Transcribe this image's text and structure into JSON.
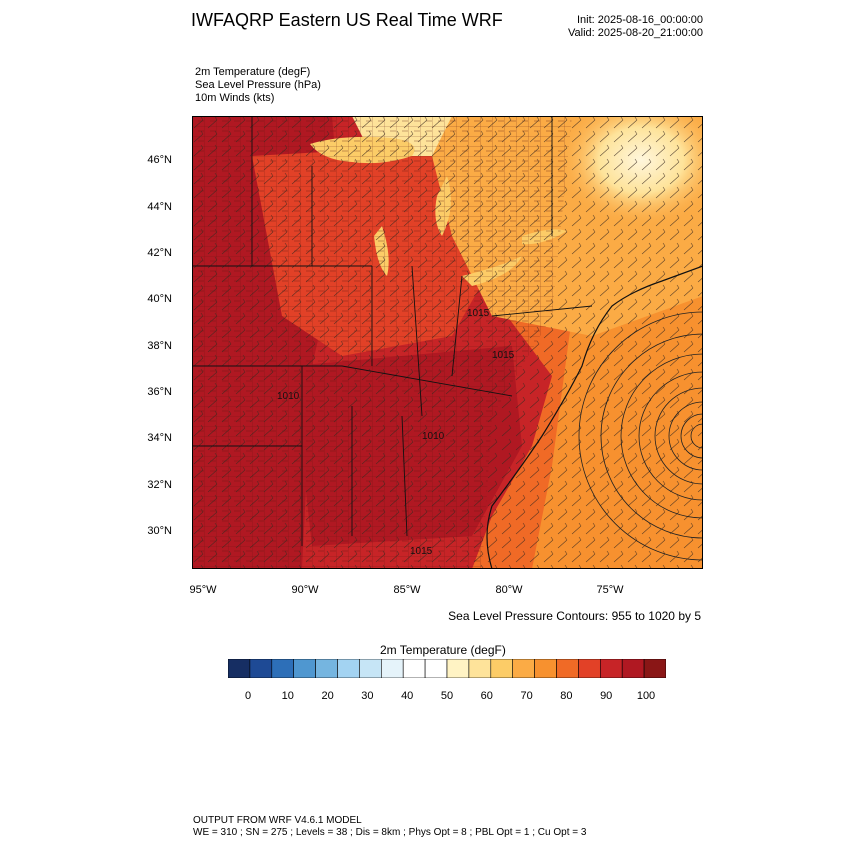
{
  "header": {
    "title": "IWFAQRP Eastern US Real Time WRF",
    "init": "Init: 2025-08-16_00:00:00",
    "valid": "Valid: 2025-08-20_21:00:00"
  },
  "fields": {
    "temp": "2m Temperature   (degF)",
    "slp": "Sea Level Pressure   (hPa)",
    "winds": "10m Winds   (kts)"
  },
  "map": {
    "lat_labels": [
      "46°N",
      "44°N",
      "42°N",
      "40°N",
      "38°N",
      "36°N",
      "34°N",
      "32°N",
      "30°N"
    ],
    "lon_labels": [
      "95°W",
      "90°W",
      "85°W",
      "80°W",
      "75°W"
    ],
    "contour_labels": [
      "1015",
      "1015",
      "1010",
      "1010",
      "1015"
    ],
    "contour_note": "Sea Level Pressure Contours: 955 to 1020 by 5"
  },
  "colorbar": {
    "title": "2m Temperature  (degF)",
    "labels": [
      "0",
      "10",
      "20",
      "30",
      "40",
      "50",
      "60",
      "70",
      "80",
      "90",
      "100"
    ],
    "colors": [
      "#162e63",
      "#1e4a95",
      "#2d6fb8",
      "#4f97d0",
      "#75b5e0",
      "#a3d3f2",
      "#c6e5f6",
      "#e5f3fa",
      "#ffffff",
      "#ffffff",
      "#fff3c4",
      "#fee39a",
      "#fccc67",
      "#fbab45",
      "#f7912f",
      "#f06a26",
      "#e24127",
      "#c72427",
      "#b01822",
      "#8a1616"
    ]
  },
  "footer": {
    "line1": "OUTPUT FROM WRF V4.6.1 MODEL",
    "line2": "WE = 310 ; SN = 275 ; Levels = 38 ; Dis = 8km ; Phys Opt = 8 ; PBL Opt = 1 ; Cu Opt = 3"
  }
}
